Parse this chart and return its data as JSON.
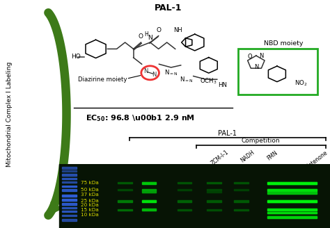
{
  "title": "PAL-1",
  "ec50_label": "EC",
  "ec50_value": ": 96.8 ± 2.9 nM",
  "pal1_label": "PAL-1",
  "competition_label": "Competition",
  "column_labels": [
    "ZCM-I-1",
    "NADH",
    "FMN",
    "Rotenone"
  ],
  "nbd_label": "NBD moiety",
  "diazirine_label": "Diazirine moiety",
  "y_axis_label": "Mitochondrial Complex I Labeling",
  "marker_labels": [
    "75 kDa",
    "50 kDa",
    "37 kDa",
    "25 kDa",
    "20 kDa",
    "15 kDa",
    "10 kDa"
  ],
  "arrow_color": "#3d7a18",
  "gel_bg": "#071405",
  "blue_bands_color": "#3366ee",
  "green_bands_color": "#00ff44",
  "marker_text_color": "#dddd00",
  "fig_bg": "#ffffff",
  "nbd_box_color": "#22aa22",
  "diazirine_circle_color": "#ee3333",
  "struct_color": "#333333"
}
